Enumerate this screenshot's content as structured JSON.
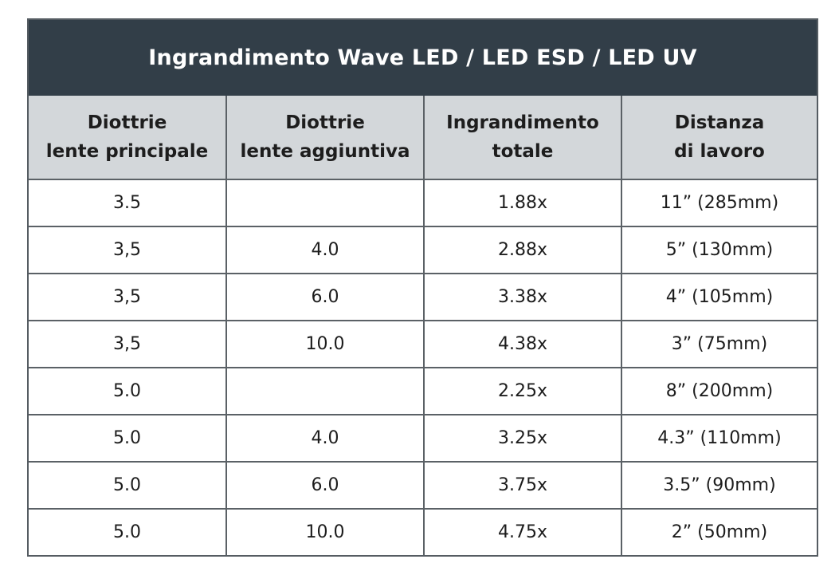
{
  "title": "Ingrandimento Wave LED / LED ESD / LED UV",
  "columns": [
    {
      "line1": "Diottrie",
      "line2": "lente principale"
    },
    {
      "line1": "Diottrie",
      "line2": "lente aggiuntiva"
    },
    {
      "line1": "Ingrandimento",
      "line2": "totale"
    },
    {
      "line1": "Distanza",
      "line2": "di lavoro"
    }
  ],
  "rows": [
    [
      "3.5",
      "",
      "1.88x",
      "11” (285mm)"
    ],
    [
      "3,5",
      "4.0",
      "2.88x",
      "5” (130mm)"
    ],
    [
      "3,5",
      "6.0",
      "3.38x",
      "4” (105mm)"
    ],
    [
      "3,5",
      "10.0",
      "4.38x",
      "3” (75mm)"
    ],
    [
      "5.0",
      "",
      "2.25x",
      "8” (200mm)"
    ],
    [
      "5.0",
      "4.0",
      "3.25x",
      "4.3” (110mm)"
    ],
    [
      "5.0",
      "6.0",
      "3.75x",
      "3.5” (90mm)"
    ],
    [
      "5.0",
      "10.0",
      "4.75x",
      "2” (50mm)"
    ]
  ],
  "colors": {
    "title_bg": "#323e48",
    "header_bg": "#d3d7da",
    "border": "#5b6166"
  }
}
